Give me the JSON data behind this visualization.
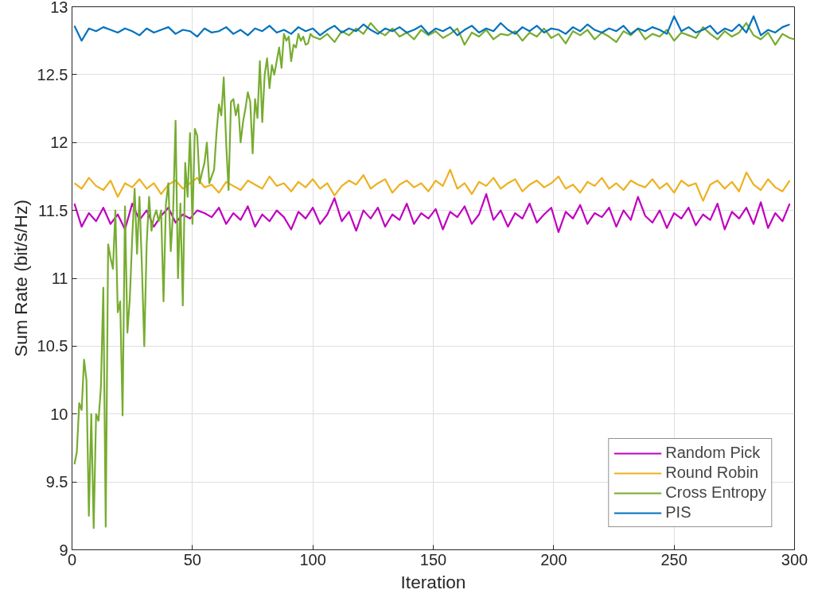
{
  "chart_data": {
    "type": "line",
    "xlabel": "Iteration",
    "ylabel": "Sum Rate (bit/s/Hz)",
    "xlim": [
      0,
      300
    ],
    "ylim": [
      9,
      13
    ],
    "xticks": [
      0,
      50,
      100,
      150,
      200,
      250,
      300
    ],
    "yticks": [
      9,
      {
        "value": 9.5,
        "label": "9.5"
      },
      10,
      {
        "value": 10.5,
        "label": "10.5"
      },
      11,
      {
        "value": 11.5,
        "label": "11.5"
      },
      12,
      {
        "value": 12.5,
        "label": "12.5"
      },
      13
    ],
    "grid": true,
    "legend": "bottom right",
    "line_style": "solid",
    "marker": "none",
    "series": [
      {
        "name": "Random Pick",
        "color": "#c000c0",
        "x": [
          1,
          4,
          7,
          10,
          13,
          16,
          19,
          22,
          25,
          28,
          31,
          34,
          37,
          40,
          43,
          46,
          49,
          52,
          55,
          58,
          61,
          64,
          67,
          70,
          73,
          76,
          79,
          82,
          85,
          88,
          91,
          94,
          97,
          100,
          103,
          106,
          109,
          112,
          115,
          118,
          121,
          124,
          127,
          130,
          133,
          136,
          139,
          142,
          145,
          148,
          151,
          154,
          157,
          160,
          163,
          166,
          169,
          172,
          175,
          178,
          181,
          184,
          187,
          190,
          193,
          196,
          199,
          202,
          205,
          208,
          211,
          214,
          217,
          220,
          223,
          226,
          229,
          232,
          235,
          238,
          241,
          244,
          247,
          250,
          253,
          256,
          259,
          262,
          265,
          268,
          271,
          274,
          277,
          280,
          283,
          286,
          289,
          292,
          295,
          298
        ],
        "values": [
          11.55,
          11.38,
          11.48,
          11.42,
          11.52,
          11.4,
          11.47,
          11.36,
          11.55,
          11.43,
          11.5,
          11.38,
          11.46,
          11.52,
          11.41,
          11.47,
          11.44,
          11.5,
          11.48,
          11.45,
          11.52,
          11.4,
          11.48,
          11.43,
          11.53,
          11.38,
          11.47,
          11.42,
          11.5,
          11.45,
          11.36,
          11.49,
          11.44,
          11.52,
          11.4,
          11.47,
          11.59,
          11.42,
          11.49,
          11.35,
          11.5,
          11.44,
          11.52,
          11.38,
          11.47,
          11.43,
          11.55,
          11.4,
          11.48,
          11.44,
          11.51,
          11.36,
          11.49,
          11.45,
          11.53,
          11.4,
          11.47,
          11.62,
          11.43,
          11.5,
          11.38,
          11.48,
          11.44,
          11.55,
          11.41,
          11.47,
          11.52,
          11.34,
          11.49,
          11.44,
          11.54,
          11.4,
          11.48,
          11.45,
          11.52,
          11.38,
          11.5,
          11.43,
          11.6,
          11.46,
          11.41,
          11.5,
          11.37,
          11.48,
          11.44,
          11.52,
          11.39,
          11.47,
          11.43,
          11.55,
          11.36,
          11.49,
          11.44,
          11.52,
          11.4,
          11.56,
          11.37,
          11.48,
          11.42,
          11.55
        ]
      },
      {
        "name": "Round Robin",
        "color": "#edb120",
        "x": [
          1,
          4,
          7,
          10,
          13,
          16,
          19,
          22,
          25,
          28,
          31,
          34,
          37,
          40,
          43,
          46,
          49,
          52,
          55,
          58,
          61,
          64,
          67,
          70,
          73,
          76,
          79,
          82,
          85,
          88,
          91,
          94,
          97,
          100,
          103,
          106,
          109,
          112,
          115,
          118,
          121,
          124,
          127,
          130,
          133,
          136,
          139,
          142,
          145,
          148,
          151,
          154,
          157,
          160,
          163,
          166,
          169,
          172,
          175,
          178,
          181,
          184,
          187,
          190,
          193,
          196,
          199,
          202,
          205,
          208,
          211,
          214,
          217,
          220,
          223,
          226,
          229,
          232,
          235,
          238,
          241,
          244,
          247,
          250,
          253,
          256,
          259,
          262,
          265,
          268,
          271,
          274,
          277,
          280,
          283,
          286,
          289,
          292,
          295,
          298
        ],
        "values": [
          11.7,
          11.66,
          11.74,
          11.68,
          11.65,
          11.72,
          11.6,
          11.7,
          11.67,
          11.73,
          11.66,
          11.7,
          11.62,
          11.69,
          11.72,
          11.66,
          11.7,
          11.74,
          11.67,
          11.69,
          11.63,
          11.71,
          11.68,
          11.65,
          11.72,
          11.69,
          11.66,
          11.75,
          11.68,
          11.7,
          11.64,
          11.71,
          11.67,
          11.73,
          11.66,
          11.7,
          11.61,
          11.68,
          11.72,
          11.69,
          11.76,
          11.66,
          11.7,
          11.73,
          11.63,
          11.69,
          11.72,
          11.67,
          11.7,
          11.64,
          11.72,
          11.68,
          11.8,
          11.66,
          11.7,
          11.62,
          11.71,
          11.68,
          11.74,
          11.66,
          11.7,
          11.73,
          11.64,
          11.69,
          11.72,
          11.67,
          11.7,
          11.75,
          11.66,
          11.69,
          11.63,
          11.71,
          11.68,
          11.74,
          11.66,
          11.7,
          11.65,
          11.72,
          11.69,
          11.67,
          11.73,
          11.66,
          11.7,
          11.63,
          11.72,
          11.68,
          11.7,
          11.57,
          11.69,
          11.72,
          11.66,
          11.71,
          11.64,
          11.78,
          11.69,
          11.65,
          11.73,
          11.67,
          11.64,
          11.72
        ]
      },
      {
        "name": "Cross Entropy",
        "color": "#77ac30",
        "x": [
          1,
          2,
          3,
          4,
          5,
          6,
          7,
          8,
          9,
          10,
          11,
          12,
          13,
          14,
          15,
          16,
          17,
          18,
          19,
          20,
          21,
          22,
          23,
          24,
          25,
          26,
          27,
          28,
          29,
          30,
          31,
          32,
          33,
          34,
          35,
          36,
          37,
          38,
          39,
          40,
          41,
          42,
          43,
          44,
          45,
          46,
          47,
          48,
          49,
          50,
          51,
          52,
          53,
          54,
          55,
          56,
          57,
          58,
          59,
          60,
          61,
          62,
          63,
          64,
          65,
          66,
          67,
          68,
          69,
          70,
          71,
          72,
          73,
          74,
          75,
          76,
          77,
          78,
          79,
          80,
          81,
          82,
          83,
          84,
          85,
          86,
          87,
          88,
          89,
          90,
          91,
          92,
          93,
          94,
          95,
          96,
          97,
          98,
          99,
          100,
          103,
          106,
          109,
          112,
          115,
          118,
          121,
          124,
          127,
          130,
          133,
          136,
          139,
          142,
          145,
          148,
          151,
          154,
          157,
          160,
          163,
          166,
          169,
          172,
          175,
          178,
          181,
          184,
          187,
          190,
          193,
          196,
          199,
          202,
          205,
          208,
          211,
          214,
          217,
          220,
          223,
          226,
          229,
          232,
          235,
          238,
          241,
          244,
          247,
          250,
          253,
          256,
          259,
          262,
          265,
          268,
          271,
          274,
          277,
          280,
          283,
          286,
          289,
          292,
          295,
          298,
          300
        ],
        "values": [
          9.63,
          9.72,
          10.08,
          10.03,
          10.4,
          10.25,
          9.25,
          10.0,
          9.16,
          10.0,
          9.95,
          10.2,
          10.93,
          9.17,
          11.25,
          11.15,
          11.07,
          11.5,
          10.75,
          10.83,
          9.99,
          11.53,
          10.6,
          10.85,
          11.3,
          11.66,
          11.18,
          11.6,
          11.1,
          10.5,
          11.25,
          11.6,
          11.35,
          11.45,
          11.5,
          11.42,
          11.5,
          10.83,
          11.55,
          11.7,
          11.2,
          11.5,
          12.16,
          11.0,
          11.55,
          10.8,
          11.85,
          11.6,
          12.07,
          11.4,
          12.1,
          12.05,
          11.7,
          11.78,
          11.85,
          12.0,
          11.7,
          11.75,
          11.8,
          12.07,
          12.28,
          12.2,
          12.48,
          12.0,
          11.65,
          12.3,
          12.32,
          12.2,
          12.28,
          12.0,
          12.15,
          12.25,
          12.37,
          12.3,
          11.92,
          12.32,
          12.18,
          12.6,
          12.15,
          12.5,
          12.62,
          12.4,
          12.57,
          12.5,
          12.6,
          12.7,
          12.55,
          12.8,
          12.75,
          12.78,
          12.6,
          12.72,
          12.7,
          12.8,
          12.75,
          12.78,
          12.72,
          12.73,
          12.8,
          12.78,
          12.76,
          12.8,
          12.74,
          12.82,
          12.79,
          12.84,
          12.8,
          12.88,
          12.82,
          12.79,
          12.84,
          12.78,
          12.81,
          12.76,
          12.83,
          12.79,
          12.82,
          12.77,
          12.8,
          12.84,
          12.72,
          12.81,
          12.78,
          12.83,
          12.76,
          12.8,
          12.79,
          12.82,
          12.75,
          12.81,
          12.78,
          12.84,
          12.77,
          12.8,
          12.73,
          12.82,
          12.79,
          12.83,
          12.76,
          12.81,
          12.78,
          12.74,
          12.82,
          12.79,
          12.84,
          12.76,
          12.8,
          12.78,
          12.83,
          12.75,
          12.81,
          12.79,
          12.77,
          12.85,
          12.8,
          12.76,
          12.82,
          12.78,
          12.81,
          12.88,
          12.79,
          12.76,
          12.81,
          12.72,
          12.8,
          12.77,
          12.76
        ]
      },
      {
        "name": "PIS",
        "color": "#0072bd",
        "x": [
          1,
          4,
          7,
          10,
          13,
          16,
          19,
          22,
          25,
          28,
          31,
          34,
          37,
          40,
          43,
          46,
          49,
          52,
          55,
          58,
          61,
          64,
          67,
          70,
          73,
          76,
          79,
          82,
          85,
          88,
          91,
          94,
          97,
          100,
          103,
          106,
          109,
          112,
          115,
          118,
          121,
          124,
          127,
          130,
          133,
          136,
          139,
          142,
          145,
          148,
          151,
          154,
          157,
          160,
          163,
          166,
          169,
          172,
          175,
          178,
          181,
          184,
          187,
          190,
          193,
          196,
          199,
          202,
          205,
          208,
          211,
          214,
          217,
          220,
          223,
          226,
          229,
          232,
          235,
          238,
          241,
          244,
          247,
          250,
          253,
          256,
          259,
          262,
          265,
          268,
          271,
          274,
          277,
          280,
          283,
          286,
          289,
          292,
          295,
          298
        ],
        "values": [
          12.86,
          12.75,
          12.84,
          12.82,
          12.85,
          12.83,
          12.81,
          12.84,
          12.82,
          12.79,
          12.84,
          12.81,
          12.83,
          12.85,
          12.8,
          12.83,
          12.82,
          12.78,
          12.84,
          12.81,
          12.82,
          12.85,
          12.8,
          12.83,
          12.79,
          12.84,
          12.82,
          12.86,
          12.81,
          12.83,
          12.8,
          12.85,
          12.82,
          12.84,
          12.79,
          12.83,
          12.86,
          12.81,
          12.84,
          12.82,
          12.87,
          12.83,
          12.8,
          12.84,
          12.82,
          12.85,
          12.81,
          12.83,
          12.86,
          12.8,
          12.84,
          12.82,
          12.85,
          12.79,
          12.83,
          12.86,
          12.81,
          12.84,
          12.82,
          12.88,
          12.83,
          12.8,
          12.85,
          12.82,
          12.86,
          12.81,
          12.84,
          12.83,
          12.8,
          12.85,
          12.82,
          12.87,
          12.83,
          12.81,
          12.84,
          12.82,
          12.86,
          12.8,
          12.84,
          12.82,
          12.85,
          12.83,
          12.8,
          12.93,
          12.82,
          12.85,
          12.81,
          12.83,
          12.86,
          12.8,
          12.84,
          12.82,
          12.87,
          12.81,
          12.93,
          12.79,
          12.83,
          12.81,
          12.85,
          12.87
        ]
      }
    ]
  }
}
